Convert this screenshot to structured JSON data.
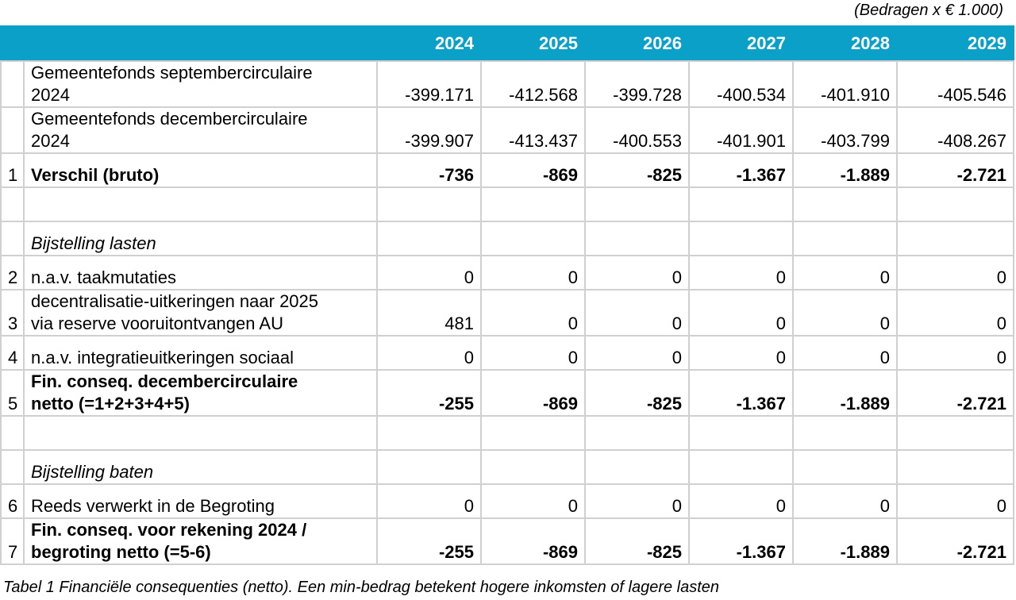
{
  "unit_note": "(Bedragen x € 1.000)",
  "header": {
    "years": [
      "2024",
      "2025",
      "2026",
      "2027",
      "2028",
      "2029"
    ]
  },
  "rows": [
    {
      "num": "",
      "label_lines": [
        "Gemeentefonds septembercirculaire",
        "2024"
      ],
      "values": [
        "-399.171",
        "-412.568",
        "-399.728",
        "-400.534",
        "-401.910",
        "-405.546"
      ]
    },
    {
      "num": "",
      "label_lines": [
        "Gemeentefonds decembercirculaire",
        "2024"
      ],
      "values": [
        "-399.907",
        "-413.437",
        "-400.553",
        "-401.901",
        "-403.799",
        "-408.267"
      ]
    },
    {
      "num": "1",
      "label_lines": [
        "Verschil (bruto)"
      ],
      "values": [
        "-736",
        "-869",
        "-825",
        "-1.367",
        "-1.889",
        "-2.721"
      ]
    },
    {
      "num": "",
      "label_lines": [
        ""
      ],
      "values": [
        "",
        "",
        "",
        "",
        "",
        ""
      ]
    },
    {
      "num": "",
      "label_lines": [
        "Bijstelling lasten"
      ],
      "values": [
        "",
        "",
        "",
        "",
        "",
        ""
      ]
    },
    {
      "num": "2",
      "label_lines": [
        "n.a.v. taakmutaties"
      ],
      "values": [
        "0",
        "0",
        "0",
        "0",
        "0",
        "0"
      ]
    },
    {
      "num": "3",
      "label_lines": [
        "decentralisatie-uitkeringen naar 2025",
        "via reserve vooruitontvangen AU"
      ],
      "values": [
        "481",
        "0",
        "0",
        "0",
        "0",
        "0"
      ]
    },
    {
      "num": "4",
      "label_lines": [
        "n.a.v. integratieuitkeringen sociaal"
      ],
      "values": [
        "0",
        "0",
        "0",
        "0",
        "0",
        "0"
      ]
    },
    {
      "num": "5",
      "label_lines": [
        "Fin. conseq. decembercirculaire",
        "netto (=1+2+3+4+5)"
      ],
      "values": [
        "-255",
        "-869",
        "-825",
        "-1.367",
        "-1.889",
        "-2.721"
      ]
    },
    {
      "num": "",
      "label_lines": [
        ""
      ],
      "values": [
        "",
        "",
        "",
        "",
        "",
        ""
      ]
    },
    {
      "num": "",
      "label_lines": [
        "Bijstelling baten"
      ],
      "values": [
        "",
        "",
        "",
        "",
        "",
        ""
      ]
    },
    {
      "num": "6",
      "label_lines": [
        "Reeds verwerkt in de Begroting"
      ],
      "values": [
        "0",
        "0",
        "0",
        "0",
        "0",
        "0"
      ]
    },
    {
      "num": "7",
      "label_lines": [
        "Fin. conseq. voor rekening 2024 /",
        "begroting netto (=5-6)"
      ],
      "values": [
        "-255",
        "-869",
        "-825",
        "-1.367",
        "-1.889",
        "-2.721"
      ]
    }
  ],
  "caption": "Tabel 1 Financiële consequenties (netto). Een min-bedrag betekent hogere inkomsten of lagere lasten"
}
